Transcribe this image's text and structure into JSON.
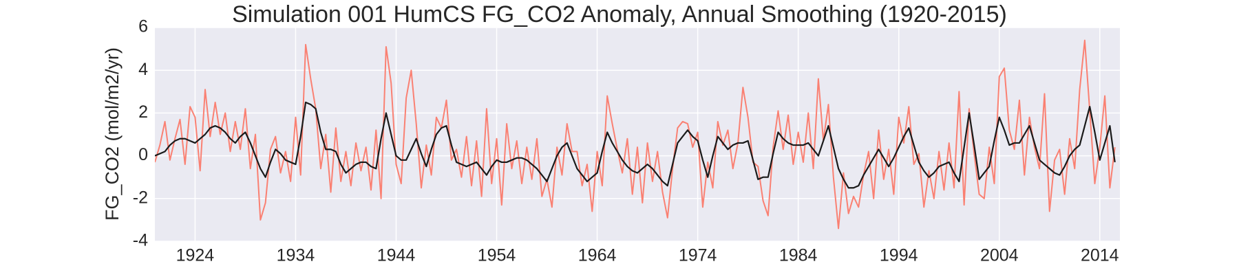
{
  "chart_data": {
    "type": "line",
    "title": "Simulation 001 HumCS FG_CO2 Anomaly, Annual Smoothing (1920-2015)",
    "y_label": "FG_CO2 (mol/m2/yr)",
    "xlim": [
      1920,
      2016
    ],
    "ylim": [
      -4,
      6
    ],
    "xticks": [
      1924,
      1934,
      1944,
      1954,
      1964,
      1974,
      1984,
      1994,
      2004,
      2014
    ],
    "yticks": [
      -4,
      -2,
      0,
      2,
      4,
      6
    ],
    "grid": true,
    "x": [
      1920,
      1920.5,
      1921,
      1921.5,
      1922,
      1922.5,
      1923,
      1923.5,
      1924,
      1924.5,
      1925,
      1925.5,
      1926,
      1926.5,
      1927,
      1927.5,
      1928,
      1928.5,
      1929,
      1929.5,
      1930,
      1930.5,
      1931,
      1931.5,
      1932,
      1932.5,
      1933,
      1933.5,
      1934,
      1934.5,
      1935,
      1935.5,
      1936,
      1936.5,
      1937,
      1937.5,
      1938,
      1938.5,
      1939,
      1939.5,
      1940,
      1940.5,
      1941,
      1941.5,
      1942,
      1942.5,
      1943,
      1943.5,
      1944,
      1944.5,
      1945,
      1945.5,
      1946,
      1946.5,
      1947,
      1947.5,
      1948,
      1948.5,
      1949,
      1949.5,
      1950,
      1950.5,
      1951,
      1951.5,
      1952,
      1952.5,
      1953,
      1953.5,
      1954,
      1954.5,
      1955,
      1955.5,
      1956,
      1956.5,
      1957,
      1957.5,
      1958,
      1958.5,
      1959,
      1959.5,
      1960,
      1960.5,
      1961,
      1961.5,
      1962,
      1962.5,
      1963,
      1963.5,
      1964,
      1964.5,
      1965,
      1965.5,
      1966,
      1966.5,
      1967,
      1967.5,
      1968,
      1968.5,
      1969,
      1969.5,
      1970,
      1970.5,
      1971,
      1971.5,
      1972,
      1972.5,
      1973,
      1973.5,
      1974,
      1974.5,
      1975,
      1975.5,
      1976,
      1976.5,
      1977,
      1977.5,
      1978,
      1978.5,
      1979,
      1979.5,
      1980,
      1980.5,
      1981,
      1981.5,
      1982,
      1982.5,
      1983,
      1983.5,
      1984,
      1984.5,
      1985,
      1985.5,
      1986,
      1986.5,
      1987,
      1987.5,
      1988,
      1988.5,
      1989,
      1989.5,
      1990,
      1990.5,
      1991,
      1991.5,
      1992,
      1992.5,
      1993,
      1993.5,
      1994,
      1994.5,
      1995,
      1995.5,
      1996,
      1996.5,
      1997,
      1997.5,
      1998,
      1998.5,
      1999,
      1999.5,
      2000,
      2000.5,
      2001,
      2001.5,
      2002,
      2002.5,
      2003,
      2003.5,
      2004,
      2004.5,
      2005,
      2005.5,
      2006,
      2006.5,
      2007,
      2007.5,
      2008,
      2008.5,
      2009,
      2009.5,
      2010,
      2010.5,
      2011,
      2011.5,
      2012,
      2012.5,
      2013,
      2013.5,
      2014,
      2014.5,
      2015,
      2015.5
    ],
    "series": [
      {
        "color": "#fa8072",
        "values": [
          -0.3,
          0.5,
          1.6,
          -0.2,
          0.8,
          1.7,
          -0.4,
          2.3,
          1.8,
          -0.7,
          3.1,
          0.9,
          2.5,
          1.0,
          2.0,
          0.2,
          1.6,
          0.3,
          2.2,
          -0.6,
          1.0,
          -3.0,
          -2.2,
          0.3,
          0.9,
          -0.8,
          0.2,
          -1.2,
          1.8,
          -0.9,
          5.2,
          3.6,
          2.2,
          -0.6,
          1.0,
          -1.7,
          1.3,
          -1.2,
          0.2,
          -1.4,
          0.6,
          -0.7,
          0.4,
          -1.6,
          1.2,
          -2.0,
          5.1,
          3.4,
          -0.4,
          -1.3,
          2.7,
          4.0,
          1.5,
          -1.5,
          0.5,
          -0.9,
          1.8,
          1.3,
          2.6,
          -0.2,
          0.3,
          -1.0,
          0.9,
          -1.4,
          0.7,
          -1.9,
          2.2,
          -1.3,
          0.8,
          -2.3,
          1.5,
          -0.6,
          0.7,
          -1.3,
          0.4,
          -1.1,
          0.8,
          -1.9,
          -1.1,
          -2.4,
          0.4,
          -0.9,
          1.5,
          0.2,
          0.2,
          -1.4,
          -0.4,
          -2.6,
          0.2,
          -1.4,
          2.8,
          1.5,
          0.3,
          -0.8,
          0.8,
          -1.8,
          0.4,
          -2.2,
          0.6,
          -1.2,
          0.2,
          -1.7,
          -2.9,
          -0.6,
          1.3,
          1.6,
          1.5,
          0.4,
          1.1,
          -2.4,
          -0.3,
          -1.5,
          1.6,
          0.5,
          1.2,
          -0.6,
          0.6,
          3.2,
          1.8,
          -0.3,
          -0.5,
          -2.1,
          -2.8,
          0.4,
          2.1,
          0.3,
          1.9,
          -0.4,
          1.1,
          -0.3,
          2.0,
          -0.6,
          3.6,
          0.7,
          2.4,
          -1.0,
          -3.4,
          -0.8,
          -2.7,
          -1.9,
          -2.4,
          -0.9,
          0.2,
          -2.0,
          1.2,
          -1.1,
          0.3,
          -1.8,
          1.8,
          0.6,
          2.3,
          -0.4,
          0.1,
          -2.4,
          -0.7,
          -2.0,
          0.2,
          -1.6,
          0.6,
          -1.5,
          3.0,
          -2.3,
          2.2,
          0.1,
          -1.8,
          -2.0,
          0.4,
          -1.3,
          3.7,
          4.1,
          1.2,
          0.3,
          2.6,
          -0.9,
          1.8,
          0.4,
          -0.6,
          2.9,
          -2.6,
          -0.2,
          0.3,
          -1.8,
          0.8,
          -0.6,
          3.1,
          5.4,
          2.1,
          -1.3,
          0.4,
          2.8,
          -1.5,
          0.4
        ]
      },
      {
        "color": "#1a1a1a",
        "values": [
          0,
          0.1,
          0.2,
          0.5,
          0.7,
          0.8,
          0.8,
          0.7,
          0.6,
          0.8,
          1.0,
          1.3,
          1.4,
          1.3,
          1.1,
          0.8,
          0.6,
          0.9,
          1.1,
          0.6,
          0.0,
          -0.6,
          -1.0,
          -0.3,
          0.3,
          0.1,
          -0.2,
          -0.3,
          -0.4,
          0.9,
          2.5,
          2.4,
          2.2,
          1.1,
          0.3,
          0.3,
          0.2,
          -0.4,
          -0.8,
          -0.6,
          -0.4,
          -0.3,
          -0.3,
          -0.5,
          -0.6,
          0.8,
          2.0,
          1.0,
          0.0,
          -0.2,
          -0.2,
          0.3,
          0.8,
          0.1,
          -0.5,
          0.3,
          1.0,
          1.3,
          1.4,
          0.5,
          -0.3,
          -0.4,
          -0.5,
          -0.4,
          -0.3,
          -0.6,
          -0.9,
          -0.5,
          -0.2,
          -0.3,
          -0.3,
          -0.2,
          -0.1,
          -0.1,
          -0.2,
          -0.4,
          -0.6,
          -0.9,
          -1.2,
          -0.6,
          0.0,
          0.4,
          0.6,
          0.0,
          -0.6,
          -0.9,
          -1.2,
          -1.0,
          -0.8,
          0.2,
          1.1,
          0.6,
          0.2,
          -0.2,
          -0.5,
          -0.7,
          -0.8,
          -0.6,
          -0.4,
          -0.6,
          -0.9,
          -1.2,
          -1.4,
          -0.4,
          0.6,
          0.9,
          1.2,
          0.9,
          0.7,
          -0.2,
          -1.0,
          0.0,
          0.9,
          0.6,
          0.3,
          0.5,
          0.6,
          0.6,
          0.7,
          -0.2,
          -1.1,
          -1.0,
          -1.0,
          0.1,
          1.1,
          0.8,
          0.6,
          0.5,
          0.5,
          0.5,
          0.6,
          0.3,
          0.0,
          0.7,
          1.4,
          0.4,
          -0.6,
          -1.1,
          -1.5,
          -1.5,
          -1.4,
          -0.9,
          -0.5,
          -0.1,
          0.3,
          -0.1,
          -0.5,
          -0.1,
          0.4,
          0.9,
          1.3,
          0.5,
          -0.3,
          -0.7,
          -1.0,
          -0.8,
          -0.5,
          -0.4,
          -0.3,
          -0.8,
          -1.2,
          0.4,
          2.0,
          0.5,
          -1.1,
          -0.8,
          -0.5,
          0.7,
          1.8,
          1.2,
          0.5,
          0.6,
          0.6,
          1.0,
          1.4,
          0.6,
          -0.2,
          -0.4,
          -0.6,
          -0.8,
          -0.9,
          -0.5,
          0.0,
          0.3,
          0.5,
          1.4,
          2.3,
          1.1,
          -0.2,
          0.6,
          1.4,
          -0.3
        ]
      }
    ]
  }
}
